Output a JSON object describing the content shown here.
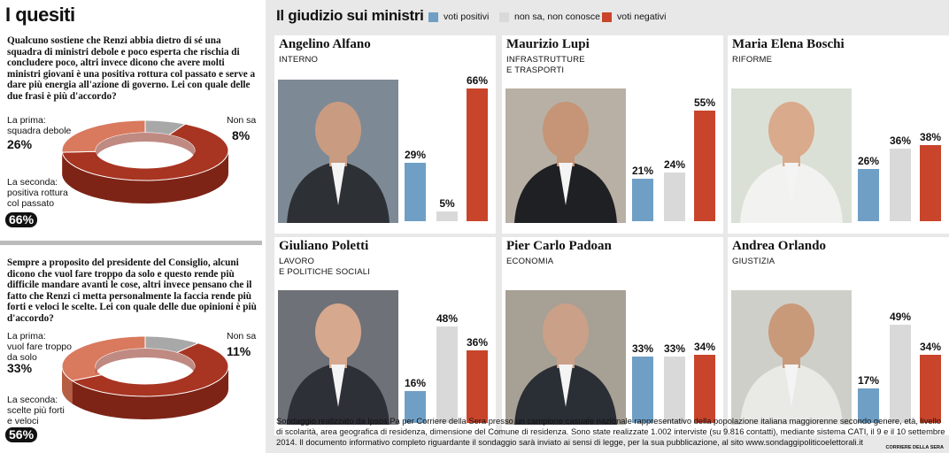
{
  "left": {
    "heading": "I quesiti",
    "q1": {
      "text": "Qualcuno sostiene che Renzi abbia dietro di sé una squadra di ministri debole e poco esperta che rischia di concludere poco, altri invece dicono che avere molti ministri giovani è una positiva rottura col passato e serve a dare più energia all'azione di governo. Lei con quale delle due frasi è più d'accordo?",
      "first_label": "La prima:\nsquadra debole",
      "first_pct": "26%",
      "second_label": "La seconda:\npositiva rottura\ncol passato",
      "second_pct": "66%",
      "dk_label": "Non sa",
      "dk_pct": "8%"
    },
    "q2": {
      "text": "Sempre a proposito del presidente del Consiglio, alcuni dicono che vuol fare troppo da solo e questo rende più difficile mandare avanti le cose, altri invece pensano che il fatto che Renzi ci metta personalmente la faccia rende più forti e veloci le scelte. Lei con quale delle due opinioni è più d'accordo?",
      "first_label": "La prima:\nvuol fare troppo\nda solo",
      "first_pct": "33%",
      "second_label": "La seconda:\nscelte più forti\ne veloci",
      "second_pct": "56%",
      "dk_label": "Non sa",
      "dk_pct": "11%"
    }
  },
  "right": {
    "title": "Il giudizio sui ministri",
    "legend": {
      "positive": "voti positivi",
      "neutral": "non sa, non conosce",
      "negative": "voti negativi"
    }
  },
  "colors": {
    "positive": "#6f9fc5",
    "neutral": "#d9d9d9",
    "negative": "#c8452b",
    "donut_first": "#d9795e",
    "donut_second": "#a83422",
    "donut_dk": "#a8a8a8"
  },
  "footnote": "Sondaggio realizzato da Ipsos Pa per Corriere della Sera presso un campione casuale nazionale rappresentativo della popolazione italiana maggiorenne secondo genere, età, livello di scolarità, area geografica di residenza, dimensione del Comune di residenza. Sono state realizzate 1.002 interviste (su 9.816 contatti), mediante sistema CATI, il 9 e il 10 settembre 2014. Il documento informativo completo riguardante il sondaggio sarà inviato ai sensi di legge, per la sua pubblicazione, al sito www.sondaggipoliticoelettorali.it",
  "credit": "CORRIERE DELLA SERA",
  "chart_data": [
    {
      "type": "pie",
      "labels": [
        "La prima: squadra debole",
        "La seconda: positiva rottura col passato",
        "Non sa"
      ],
      "values": [
        26,
        66,
        8
      ]
    },
    {
      "type": "pie",
      "labels": [
        "La prima: vuol fare troppo da solo",
        "La seconda: scelte più forti e veloci",
        "Non sa"
      ],
      "values": [
        33,
        56,
        11
      ]
    },
    {
      "type": "bar",
      "title": "Il giudizio sui ministri",
      "categories": [
        "Angelino Alfano",
        "Maurizio Lupi",
        "Maria Elena Boschi",
        "Giuliano Poletti",
        "Pier Carlo Padoan",
        "Andrea Orlando"
      ],
      "roles": [
        "INTERNO",
        "INFRASTRUTTURE\nE TRASPORTI",
        "RIFORME",
        "LAVORO\nE POLITICHE SOCIALI",
        "ECONOMIA",
        "GIUSTIZIA"
      ],
      "series": [
        {
          "name": "voti positivi",
          "values": [
            29,
            21,
            26,
            16,
            33,
            17
          ]
        },
        {
          "name": "non sa, non conosce",
          "values": [
            5,
            24,
            36,
            48,
            33,
            49
          ]
        },
        {
          "name": "voti negativi",
          "values": [
            66,
            55,
            38,
            36,
            34,
            34
          ]
        }
      ],
      "ylim": [
        0,
        66
      ]
    }
  ]
}
